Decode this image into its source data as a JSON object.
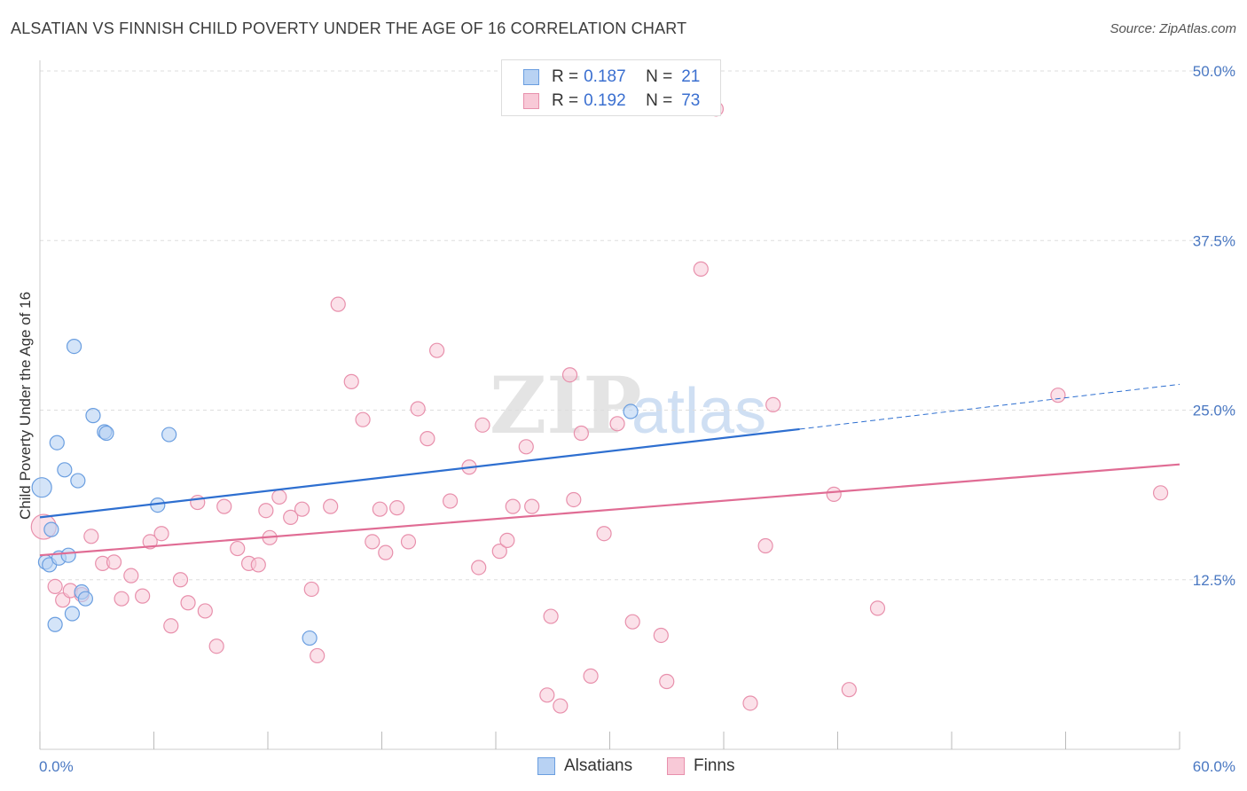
{
  "title": "ALSATIAN VS FINNISH CHILD POVERTY UNDER THE AGE OF 16 CORRELATION CHART",
  "source": "Source: ZipAtlas.com",
  "watermark": {
    "zip": "ZIP",
    "atlas": "atlas"
  },
  "legend": {
    "alsatians": {
      "r_label": "R = ",
      "r_value": "0.187",
      "n_label": "N = ",
      "n_value": "21"
    },
    "finns": {
      "r_label": "R = ",
      "r_value": "0.192",
      "n_label": "N = ",
      "n_value": "73"
    }
  },
  "bottom_legend": {
    "alsatians": "Alsatians",
    "finns": "Finns"
  },
  "colors": {
    "alsatians_fill": "#b8d2f3",
    "alsatians_stroke": "#6a9ee0",
    "alsatians_line": "#2e6fd0",
    "finns_fill": "#f8c9d7",
    "finns_stroke": "#e890ac",
    "finns_line": "#e06c94",
    "tick_text": "#4a78c2",
    "grid": "#dddddd"
  },
  "chart_data": {
    "type": "scatter",
    "title": "ALSATIAN VS FINNISH CHILD POVERTY UNDER THE AGE OF 16 CORRELATION CHART",
    "xlabel": "",
    "ylabel": "Child Poverty Under the Age of 16",
    "xlim": [
      0,
      60
    ],
    "ylim": [
      0,
      50
    ],
    "x_tick_labels": [
      "0.0%",
      "60.0%"
    ],
    "y_ticks": [
      12.5,
      25.0,
      37.5,
      50.0
    ],
    "y_tick_labels": [
      "12.5%",
      "25.0%",
      "37.5%",
      "50.0%"
    ],
    "grid": true,
    "series": [
      {
        "name": "Alsatians",
        "r": 0.187,
        "n": 21,
        "trend": {
          "x0": 0,
          "y0": 17.1,
          "x1": 40,
          "y1": 23.6,
          "x_dashed_end": 60,
          "y_dashed_end": 26.9
        },
        "points": [
          [
            0.1,
            19.3
          ],
          [
            0.3,
            13.8
          ],
          [
            0.5,
            13.6
          ],
          [
            0.6,
            16.2
          ],
          [
            0.8,
            9.2
          ],
          [
            0.9,
            22.6
          ],
          [
            1.0,
            14.1
          ],
          [
            1.3,
            20.6
          ],
          [
            1.5,
            14.3
          ],
          [
            1.7,
            10.0
          ],
          [
            1.8,
            29.7
          ],
          [
            2.0,
            19.8
          ],
          [
            2.2,
            11.6
          ],
          [
            2.4,
            11.1
          ],
          [
            2.8,
            24.6
          ],
          [
            3.4,
            23.4
          ],
          [
            3.5,
            23.3
          ],
          [
            6.2,
            18.0
          ],
          [
            6.8,
            23.2
          ],
          [
            14.2,
            8.2
          ],
          [
            31.1,
            24.9
          ]
        ]
      },
      {
        "name": "Finns",
        "r": 0.192,
        "n": 73,
        "trend": {
          "x0": 0,
          "y0": 14.3,
          "x1": 60,
          "y1": 21.0
        },
        "points": [
          [
            0.2,
            16.4
          ],
          [
            0.8,
            12.0
          ],
          [
            1.2,
            11.0
          ],
          [
            1.6,
            11.7
          ],
          [
            2.2,
            11.4
          ],
          [
            2.7,
            15.7
          ],
          [
            3.3,
            13.7
          ],
          [
            3.9,
            13.8
          ],
          [
            4.3,
            11.1
          ],
          [
            4.8,
            12.8
          ],
          [
            5.4,
            11.3
          ],
          [
            5.8,
            15.3
          ],
          [
            6.4,
            15.9
          ],
          [
            6.9,
            9.1
          ],
          [
            7.4,
            12.5
          ],
          [
            7.8,
            10.8
          ],
          [
            8.3,
            18.2
          ],
          [
            8.7,
            10.2
          ],
          [
            9.3,
            7.6
          ],
          [
            9.7,
            17.9
          ],
          [
            10.4,
            14.8
          ],
          [
            11.0,
            13.7
          ],
          [
            11.5,
            13.6
          ],
          [
            11.9,
            17.6
          ],
          [
            12.1,
            15.6
          ],
          [
            12.6,
            18.6
          ],
          [
            13.2,
            17.1
          ],
          [
            13.8,
            17.7
          ],
          [
            14.3,
            11.8
          ],
          [
            14.6,
            6.9
          ],
          [
            15.3,
            17.9
          ],
          [
            15.7,
            32.8
          ],
          [
            16.4,
            27.1
          ],
          [
            17.0,
            24.3
          ],
          [
            17.5,
            15.3
          ],
          [
            17.9,
            17.7
          ],
          [
            18.2,
            14.5
          ],
          [
            18.8,
            17.8
          ],
          [
            19.4,
            15.3
          ],
          [
            19.9,
            25.1
          ],
          [
            20.4,
            22.9
          ],
          [
            20.9,
            29.4
          ],
          [
            21.6,
            18.3
          ],
          [
            22.6,
            20.8
          ],
          [
            23.1,
            13.4
          ],
          [
            23.3,
            23.9
          ],
          [
            24.2,
            14.6
          ],
          [
            24.6,
            15.4
          ],
          [
            24.9,
            17.9
          ],
          [
            25.6,
            22.3
          ],
          [
            25.9,
            17.9
          ],
          [
            26.7,
            4.0
          ],
          [
            26.9,
            9.8
          ],
          [
            27.4,
            3.2
          ],
          [
            27.9,
            27.6
          ],
          [
            28.1,
            18.4
          ],
          [
            28.5,
            23.3
          ],
          [
            29.0,
            5.4
          ],
          [
            29.7,
            15.9
          ],
          [
            30.4,
            24.0
          ],
          [
            31.2,
            9.4
          ],
          [
            32.7,
            8.4
          ],
          [
            33.0,
            5.0
          ],
          [
            34.8,
            35.4
          ],
          [
            35.6,
            47.2
          ],
          [
            37.4,
            3.4
          ],
          [
            38.2,
            15.0
          ],
          [
            38.6,
            25.4
          ],
          [
            41.8,
            18.8
          ],
          [
            42.6,
            4.4
          ],
          [
            44.1,
            10.4
          ],
          [
            53.6,
            26.1
          ],
          [
            59.0,
            18.9
          ]
        ]
      }
    ]
  }
}
